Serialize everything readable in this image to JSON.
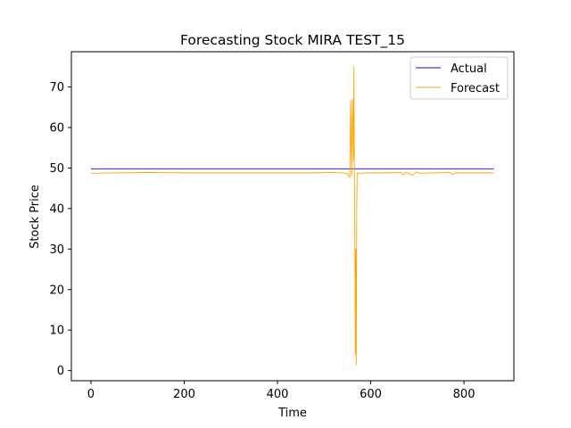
{
  "chart_data": {
    "type": "line",
    "title": "Forecasting Stock MIRA TEST_15",
    "xlabel": "Time",
    "ylabel": "Stock Price",
    "xlim": [
      -42,
      907
    ],
    "ylim": [
      -2.5,
      78.7
    ],
    "xticks": [
      0,
      200,
      400,
      600,
      800
    ],
    "yticks": [
      0,
      10,
      20,
      30,
      40,
      50,
      60,
      70
    ],
    "grid": false,
    "legend_position": "upper right",
    "series": [
      {
        "name": "Actual",
        "color": "#0000ff",
        "points": [
          [
            0,
            49.8
          ],
          [
            864,
            49.8
          ]
        ]
      },
      {
        "name": "Forecast",
        "color": "#ffa500",
        "points": [
          [
            0,
            48.7
          ],
          [
            60,
            48.8
          ],
          [
            120,
            48.9
          ],
          [
            200,
            48.8
          ],
          [
            280,
            48.8
          ],
          [
            360,
            48.8
          ],
          [
            400,
            48.8
          ],
          [
            440,
            48.8
          ],
          [
            480,
            48.8
          ],
          [
            510,
            48.9
          ],
          [
            540,
            48.8
          ],
          [
            550,
            48.6
          ],
          [
            555,
            47.6
          ],
          [
            557,
            66.8
          ],
          [
            559,
            48.0
          ],
          [
            561,
            67.0
          ],
          [
            563,
            52.0
          ],
          [
            564,
            75.0
          ],
          [
            565,
            48.5
          ],
          [
            566,
            30.5
          ],
          [
            567,
            4.0
          ],
          [
            568,
            30.0
          ],
          [
            569,
            1.5
          ],
          [
            570,
            41.0
          ],
          [
            571,
            48.8
          ],
          [
            575,
            48.7
          ],
          [
            600,
            48.8
          ],
          [
            640,
            48.8
          ],
          [
            665,
            48.9
          ],
          [
            670,
            48.3
          ],
          [
            675,
            48.9
          ],
          [
            680,
            48.7
          ],
          [
            690,
            48.2
          ],
          [
            697,
            49.0
          ],
          [
            705,
            48.7
          ],
          [
            740,
            48.8
          ],
          [
            770,
            48.9
          ],
          [
            775,
            48.4
          ],
          [
            780,
            48.8
          ],
          [
            820,
            48.8
          ],
          [
            864,
            48.8
          ]
        ]
      }
    ]
  }
}
